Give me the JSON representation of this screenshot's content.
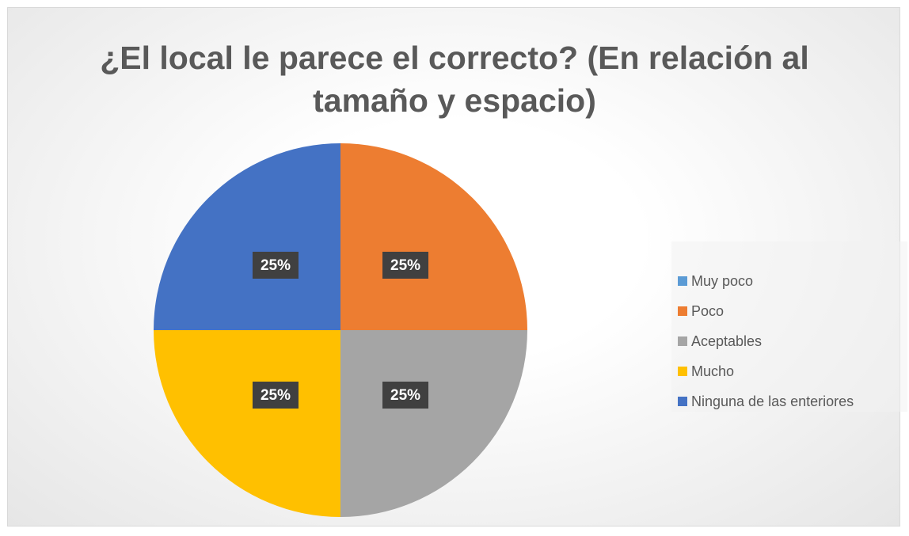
{
  "chart_data": {
    "type": "pie",
    "title": "¿El local le parece el correcto? (En relación al tamaño y espacio)",
    "categories": [
      "Muy poco",
      "Poco",
      "Aceptables",
      "Mucho",
      "Ninguna de las enteriores"
    ],
    "values": [
      0,
      25,
      25,
      25,
      25
    ],
    "value_labels": [
      null,
      "25%",
      "25%",
      "25%",
      "25%"
    ],
    "colors": [
      "#5b9bd5",
      "#ed7d31",
      "#a5a5a5",
      "#ffc000",
      "#4472c4"
    ],
    "legend": "right"
  }
}
